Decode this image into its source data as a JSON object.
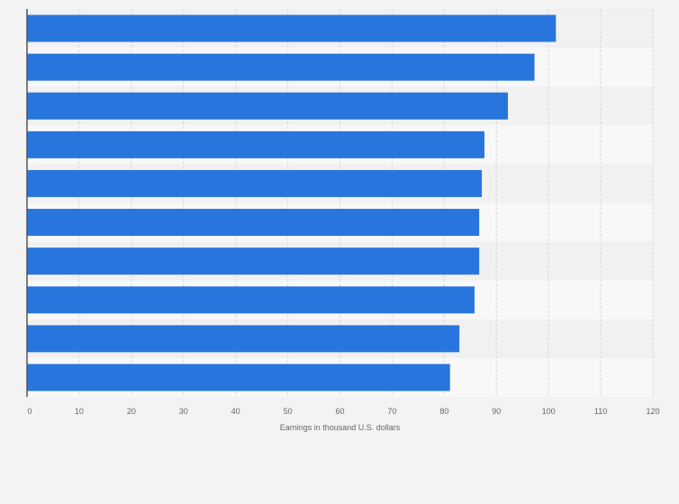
{
  "chart_data": {
    "type": "bar",
    "orientation": "horizontal",
    "title": "",
    "xlabel": "Earnings in thousand U.S. dollars",
    "ylabel": "",
    "categories": [
      "",
      "",
      "",
      "",
      "",
      "",
      "",
      "",
      "",
      ""
    ],
    "series": [
      {
        "name": "Earnings",
        "values": [
          101.4,
          97.3,
          92.2,
          87.7,
          87.2,
          86.7,
          86.7,
          85.8,
          82.9,
          81.1
        ]
      }
    ],
    "xlim": [
      0,
      120
    ],
    "xticks": [
      0,
      10,
      20,
      30,
      40,
      50,
      60,
      70,
      80,
      90,
      100,
      110,
      120
    ],
    "xtick_labels": [
      "0",
      "10",
      "20",
      "30",
      "40",
      "50",
      "60",
      "70",
      "80",
      "90",
      "100",
      "110",
      "120"
    ],
    "grid": true,
    "legend": "none"
  },
  "colors": {
    "bar": "#2876dd",
    "background": "#f3f3f3",
    "plot_band_light": "#f8f8f8",
    "plot_band_dark": "#f1f1f1",
    "grid": "#d8d8d8",
    "axis": "#555555",
    "text": "#666666"
  }
}
